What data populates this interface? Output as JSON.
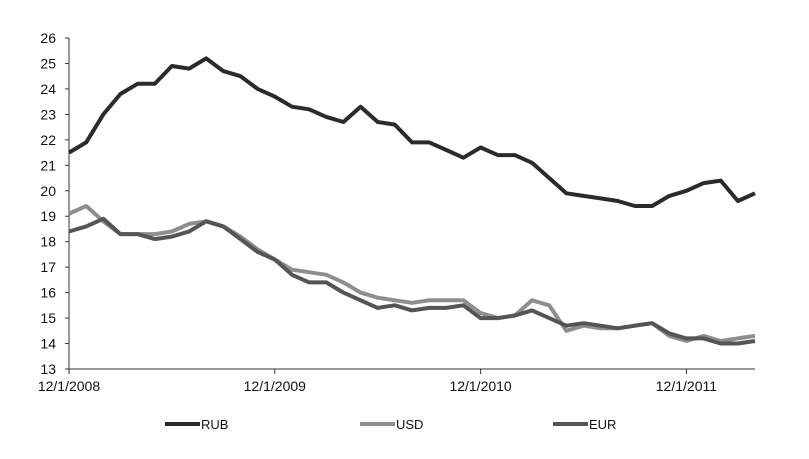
{
  "chart_data": {
    "type": "line",
    "title": "",
    "xlabel": "",
    "ylabel": "",
    "ylim": [
      13,
      26
    ],
    "y_ticks": [
      "13",
      "14",
      "15",
      "16",
      "17",
      "18",
      "19",
      "20",
      "21",
      "22",
      "23",
      "24",
      "25",
      "26"
    ],
    "xlim": [
      0,
      40
    ],
    "x_ticks": [
      {
        "label": "12/1/2008",
        "x": 0
      },
      {
        "label": "12/1/2009",
        "x": 12
      },
      {
        "label": "12/1/2010",
        "x": 24
      },
      {
        "label": "12/1/2011",
        "x": 36
      }
    ],
    "x_unit": "months since 12/1/2008",
    "grid": false,
    "legend_position": "bottom",
    "series": [
      {
        "name": "RUB",
        "color": "#2b2b2b",
        "x": [
          0,
          1,
          2,
          3,
          4,
          5,
          6,
          7,
          8,
          9,
          10,
          11,
          12,
          13,
          14,
          15,
          16,
          17,
          18,
          19,
          20,
          21,
          22,
          23,
          24,
          25,
          26,
          27,
          28,
          29,
          30,
          31,
          32,
          33,
          34,
          35,
          36,
          37,
          38,
          39,
          40
        ],
        "values": [
          21.5,
          21.9,
          23.0,
          23.8,
          24.2,
          24.2,
          24.9,
          24.8,
          25.2,
          24.7,
          24.5,
          24.0,
          23.7,
          23.3,
          23.2,
          22.9,
          22.7,
          23.3,
          22.7,
          22.6,
          21.9,
          21.9,
          21.6,
          21.3,
          21.7,
          21.4,
          21.4,
          21.1,
          20.5,
          19.9,
          19.8,
          19.7,
          19.6,
          19.4,
          19.4,
          19.8,
          20.0,
          20.3,
          20.4,
          19.6,
          19.9
        ]
      },
      {
        "name": "USD",
        "color": "#8e8e8e",
        "x": [
          0,
          1,
          2,
          3,
          4,
          5,
          6,
          7,
          8,
          9,
          10,
          11,
          12,
          13,
          14,
          15,
          16,
          17,
          18,
          19,
          20,
          21,
          22,
          23,
          24,
          25,
          26,
          27,
          28,
          29,
          30,
          31,
          32,
          33,
          34,
          35,
          36,
          37,
          38,
          39,
          40
        ],
        "values": [
          19.1,
          19.4,
          18.8,
          18.3,
          18.3,
          18.3,
          18.4,
          18.7,
          18.8,
          18.6,
          18.2,
          17.7,
          17.3,
          16.9,
          16.8,
          16.7,
          16.4,
          16.0,
          15.8,
          15.7,
          15.6,
          15.7,
          15.7,
          15.7,
          15.2,
          15.0,
          15.1,
          15.7,
          15.5,
          14.5,
          14.7,
          14.6,
          14.6,
          14.7,
          14.8,
          14.3,
          14.1,
          14.3,
          14.1,
          14.2,
          14.3
        ]
      },
      {
        "name": "EUR",
        "color": "#555555",
        "x": [
          0,
          1,
          2,
          3,
          4,
          5,
          6,
          7,
          8,
          9,
          10,
          11,
          12,
          13,
          14,
          15,
          16,
          17,
          18,
          19,
          20,
          21,
          22,
          23,
          24,
          25,
          26,
          27,
          28,
          29,
          30,
          31,
          32,
          33,
          34,
          35,
          36,
          37,
          38,
          39,
          40
        ],
        "values": [
          18.4,
          18.6,
          18.9,
          18.3,
          18.3,
          18.1,
          18.2,
          18.4,
          18.8,
          18.6,
          18.1,
          17.6,
          17.3,
          16.7,
          16.4,
          16.4,
          16.0,
          15.7,
          15.4,
          15.5,
          15.3,
          15.4,
          15.4,
          15.5,
          15.0,
          15.0,
          15.1,
          15.3,
          15.0,
          14.7,
          14.8,
          14.7,
          14.6,
          14.7,
          14.8,
          14.4,
          14.2,
          14.2,
          14.0,
          14.0,
          14.1
        ]
      }
    ]
  }
}
